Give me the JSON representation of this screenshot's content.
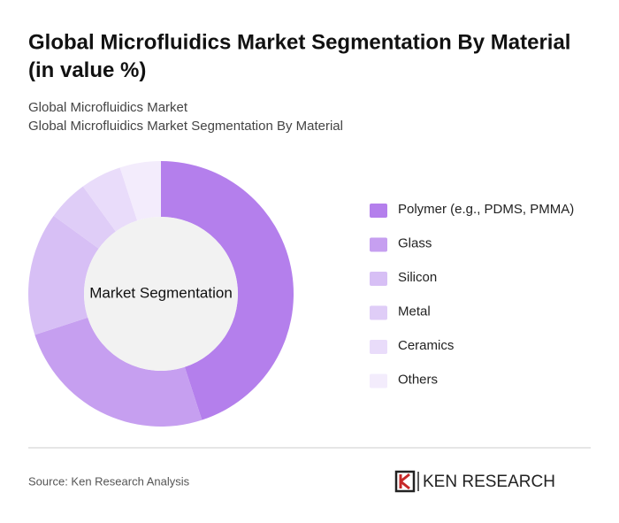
{
  "chart_data": {
    "type": "donut",
    "title": "Global Microfluidics Market Segmentation By Material (in value %)",
    "subtitle_lines": [
      "Global Microfluidics Market",
      "Global Microfluidics Market Segmentation By Material"
    ],
    "center_label": "Market Segmentation",
    "categories": [
      "Polymer (e.g., PDMS, PMMA)",
      "Glass",
      "Silicon",
      "Metal",
      "Ceramics",
      "Others"
    ],
    "values": [
      45,
      25,
      15,
      5,
      5,
      5
    ],
    "colors": [
      "#b47fec",
      "#c69ff0",
      "#d7bff5",
      "#dfcdf7",
      "#e9dcfa",
      "#f3ecfc"
    ],
    "source": "Source: Ken Research Analysis",
    "logo": "KEN RESEARCH"
  }
}
